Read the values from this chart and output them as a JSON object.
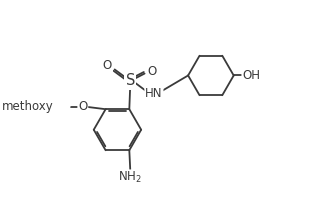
{
  "bg_color": "#ffffff",
  "line_color": "#3a3a3a",
  "line_width": 1.3,
  "font_size": 8.5,
  "fig_width": 3.21,
  "fig_height": 2.23,
  "dpi": 100,
  "xlim": [
    -0.3,
    5.8
  ],
  "ylim": [
    -1.7,
    2.5
  ]
}
